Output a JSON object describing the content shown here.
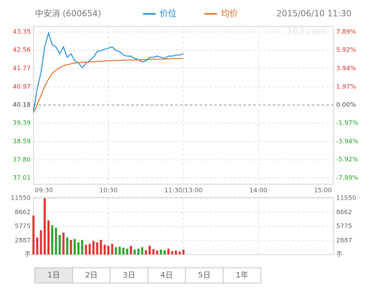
{
  "header": {
    "title": "中安消 (600654)",
    "date": "2015/06/10 11:30",
    "watermark": "163.com"
  },
  "chart_data": [
    {
      "type": "line",
      "legend": "top",
      "x": [
        "09:30",
        "09:33",
        "09:36",
        "09:39",
        "09:42",
        "09:45",
        "09:48",
        "09:51",
        "09:54",
        "09:57",
        "10:00",
        "10:03",
        "10:06",
        "10:09",
        "10:12",
        "10:15",
        "10:18",
        "10:21",
        "10:24",
        "10:27",
        "10:30",
        "10:33",
        "10:36",
        "10:39",
        "10:42",
        "10:45",
        "10:48",
        "10:51",
        "10:54",
        "10:57",
        "11:00",
        "11:03",
        "11:06",
        "11:09",
        "11:12",
        "11:15",
        "11:18",
        "11:21",
        "11:24",
        "11:27",
        "11:30"
      ],
      "series": [
        {
          "name": "价位",
          "color": "#1a8ad6",
          "values": [
            39.9,
            40.9,
            41.6,
            42.7,
            43.3,
            42.8,
            42.7,
            42.4,
            42.7,
            42.25,
            42.4,
            42.1,
            42.0,
            41.8,
            42.0,
            42.1,
            42.25,
            42.5,
            42.55,
            42.6,
            42.65,
            42.7,
            42.55,
            42.5,
            42.35,
            42.3,
            42.3,
            42.2,
            42.15,
            42.05,
            42.1,
            42.25,
            42.25,
            42.3,
            42.25,
            42.2,
            42.3,
            42.3,
            42.35,
            42.35,
            42.4
          ]
        },
        {
          "name": "均价",
          "color": "#e8691f",
          "values": [
            39.85,
            40.2,
            40.6,
            41.0,
            41.3,
            41.55,
            41.7,
            41.8,
            41.88,
            41.93,
            41.97,
            42.0,
            42.02,
            42.03,
            42.04,
            42.05,
            42.06,
            42.07,
            42.08,
            42.09,
            42.1,
            42.11,
            42.11,
            42.12,
            42.12,
            42.13,
            42.13,
            42.14,
            42.14,
            42.15,
            42.15,
            42.16,
            42.16,
            42.17,
            42.17,
            42.18,
            42.18,
            42.19,
            42.19,
            42.2,
            42.2
          ]
        }
      ],
      "xlim": [
        "09:30",
        "15:00"
      ],
      "xticks": [
        "09:30",
        "10:30",
        "11:30/13:00",
        "14:00",
        "15:00"
      ],
      "ylim": [
        36.74,
        43.59
      ],
      "yticks": [
        43.35,
        42.56,
        41.77,
        40.97,
        40.18,
        39.39,
        38.59,
        {
          "value": 37.8,
          "label": "37.80"
        },
        37.01
      ],
      "y2lim": [
        -8.57,
        8.49
      ],
      "y2ticks": [
        {
          "value": 7.89,
          "label": "7.89%"
        },
        {
          "value": 5.92,
          "label": "5.92%"
        },
        {
          "value": 3.94,
          "label": "3.94%"
        },
        {
          "value": 1.97,
          "label": "1.97%"
        },
        {
          "value": 0,
          "label": "0.00%"
        },
        {
          "value": -1.97,
          "label": "-1.97%"
        },
        {
          "value": -3.94,
          "label": "-3.94%"
        },
        {
          "value": -5.92,
          "label": "-5.92%"
        },
        {
          "value": -7.89,
          "label": "-7.89%"
        }
      ],
      "up_color": "#e03030",
      "down_color": "#2aa02a",
      "grid": true
    },
    {
      "type": "bar",
      "unit": "手",
      "values": [
        8000,
        3500,
        5000,
        11550,
        7000,
        6000,
        5500,
        4000,
        4500,
        3500,
        3000,
        3200,
        2500,
        3000,
        2000,
        2200,
        2800,
        2500,
        3000,
        2000,
        1800,
        2200,
        1500,
        1600,
        1400,
        1200,
        1800,
        1000,
        1200,
        1500,
        900,
        1800,
        1100,
        800,
        1000,
        900,
        1200,
        700,
        800,
        600,
        1000
      ],
      "ylim": [
        0,
        11700
      ],
      "yticks": [
        11550,
        8662,
        5775,
        2887
      ]
    }
  ],
  "tabs": [
    "1日",
    "2日",
    "3日",
    "4日",
    "5日",
    "1年"
  ]
}
